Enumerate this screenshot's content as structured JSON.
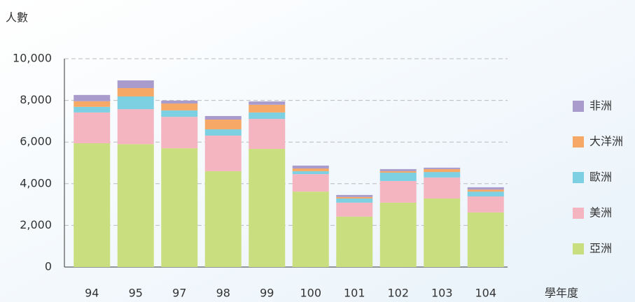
{
  "chart_data": {
    "type": "stacked_bar",
    "y_label": "人數",
    "x_label": "學年度",
    "categories": [
      "94",
      "95",
      "97",
      "98",
      "99",
      "100",
      "101",
      "102",
      "103",
      "104"
    ],
    "series": [
      {
        "name": "亞洲",
        "color": "#c9df7f",
        "values": [
          5940,
          5900,
          5700,
          4600,
          5670,
          3620,
          2420,
          3090,
          3290,
          2620
        ]
      },
      {
        "name": "美洲",
        "color": "#f4b5c0",
        "values": [
          1480,
          1680,
          1510,
          1710,
          1440,
          840,
          670,
          1040,
          1010,
          770
        ]
      },
      {
        "name": "歐洲",
        "color": "#7dd0e2",
        "values": [
          270,
          610,
          310,
          300,
          310,
          140,
          200,
          400,
          260,
          230
        ]
      },
      {
        "name": "大洋洲",
        "color": "#f6a866",
        "values": [
          270,
          400,
          330,
          470,
          370,
          130,
          70,
          70,
          140,
          100
        ]
      },
      {
        "name": "非洲",
        "color": "#a99ccc",
        "values": [
          300,
          370,
          140,
          170,
          160,
          140,
          100,
          100,
          70,
          110
        ]
      }
    ],
    "ylim": [
      0,
      10000
    ],
    "yticks": [
      0,
      {
        "value": 2000,
        "label": "2,000"
      },
      {
        "value": 4000,
        "label": "4,000"
      },
      {
        "value": 6000,
        "label": "6,000"
      },
      {
        "value": 8000,
        "label": "8,000"
      },
      {
        "value": 10000,
        "label": "10,000"
      }
    ],
    "grid": true,
    "legend": "right"
  }
}
